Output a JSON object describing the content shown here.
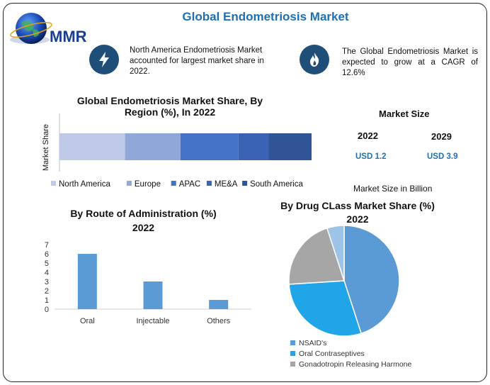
{
  "title": "Global Endometriosis Market",
  "logo": {
    "text": "MMR"
  },
  "info": [
    {
      "icon": "lightning-icon",
      "text": "North America Endometriosis Market accounted for largest market share in 2022."
    },
    {
      "icon": "flame-icon",
      "text": "The Global Endometriosis Market is expected to grow at a CAGR of 12.6%"
    }
  ],
  "colors": {
    "title": "#1f6fb2",
    "icon_bg": "#1f4e79",
    "bar_blue": "#5b9bd5",
    "pie_nsaid": "#5b9bd5",
    "pie_oral_contraceptives": "#1fa5e8",
    "pie_gnrh": "#a6a6a6",
    "pie_other": "#9dc3e6"
  },
  "market_size": {
    "title": "Market Size",
    "years": [
      "2022",
      "2029"
    ],
    "values": [
      "USD 1.2",
      "USD 3.9"
    ],
    "unit_label": "Market Size in Billion"
  },
  "chart_data": [
    {
      "type": "bar",
      "orientation": "horizontal-stacked",
      "title": "Global Endometriosis Market Share, By Region (%), In 2022",
      "ylabel": "Market Share",
      "series": [
        {
          "name": "North America",
          "value": 26,
          "color": "#bfcbe6"
        },
        {
          "name": "Europe",
          "value": 22,
          "color": "#8fa8d9"
        },
        {
          "name": "APAC",
          "value": 23,
          "color": "#4472c4"
        },
        {
          "name": "ME&A",
          "value": 12,
          "color": "#3a64b3"
        },
        {
          "name": "South America",
          "value": 17,
          "color": "#2f5597"
        }
      ],
      "legend": "bottom"
    },
    {
      "type": "bar",
      "title": "By Route of Administration (%)",
      "subtitle": "2022",
      "categories": [
        "Oral",
        "Injectable",
        "Others"
      ],
      "values": [
        6,
        3,
        1
      ],
      "ylim": [
        0,
        7
      ],
      "yticks": [
        "0",
        "1",
        "2",
        "3",
        "4",
        "5",
        "6",
        "7"
      ],
      "grid": false
    },
    {
      "type": "pie",
      "title": "By Drug CLass Market Share (%)",
      "subtitle": "2022",
      "slices": [
        {
          "label": "NSAID's",
          "value": 45,
          "color": "#5b9bd5"
        },
        {
          "label": "Oral Contraseptives",
          "value": 29,
          "color": "#1fa5e8"
        },
        {
          "label": "Gonadotropin Releasing Harmone",
          "value": 21,
          "color": "#a6a6a6"
        },
        {
          "label": "",
          "value": 5,
          "color": "#9dc3e6"
        }
      ],
      "legend": "bottom-left"
    }
  ]
}
